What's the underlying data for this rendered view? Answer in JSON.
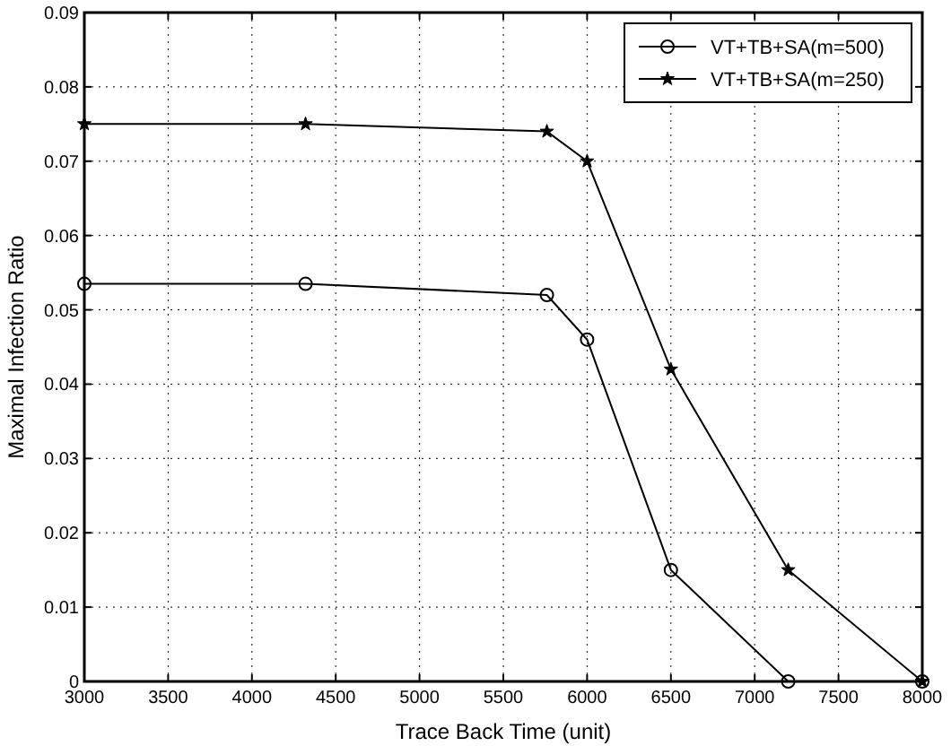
{
  "chart_data": {
    "type": "line",
    "xlabel": "Trace Back Time (unit)",
    "ylabel": "Maximal Infection Ratio",
    "xlim": [
      3000,
      8000
    ],
    "xticks": [
      3000,
      3500,
      4000,
      4500,
      5000,
      5500,
      6000,
      6500,
      7000,
      7500,
      8000
    ],
    "ylim": [
      0,
      0.09
    ],
    "yticks": [
      0,
      0.01,
      0.02,
      0.03,
      0.04,
      0.05,
      0.06,
      0.07,
      0.08,
      0.09
    ],
    "grid": true,
    "legend": "top right",
    "series": [
      {
        "name": "VT+TB+SA(m=500)",
        "color": "#000000",
        "marker": "circle",
        "x": [
          3000,
          4320,
          5760,
          6000,
          6500,
          7200,
          8000
        ],
        "values": [
          0.0535,
          0.0535,
          0.052,
          0.046,
          0.015,
          0,
          0
        ]
      },
      {
        "name": "VT+TB+SA(m=250)",
        "color": "#000000",
        "marker": "star",
        "x": [
          3000,
          4320,
          5760,
          6000,
          6500,
          7200,
          8000
        ],
        "values": [
          0.075,
          0.075,
          0.074,
          0.07,
          0.042,
          0.015,
          0
        ]
      }
    ]
  }
}
